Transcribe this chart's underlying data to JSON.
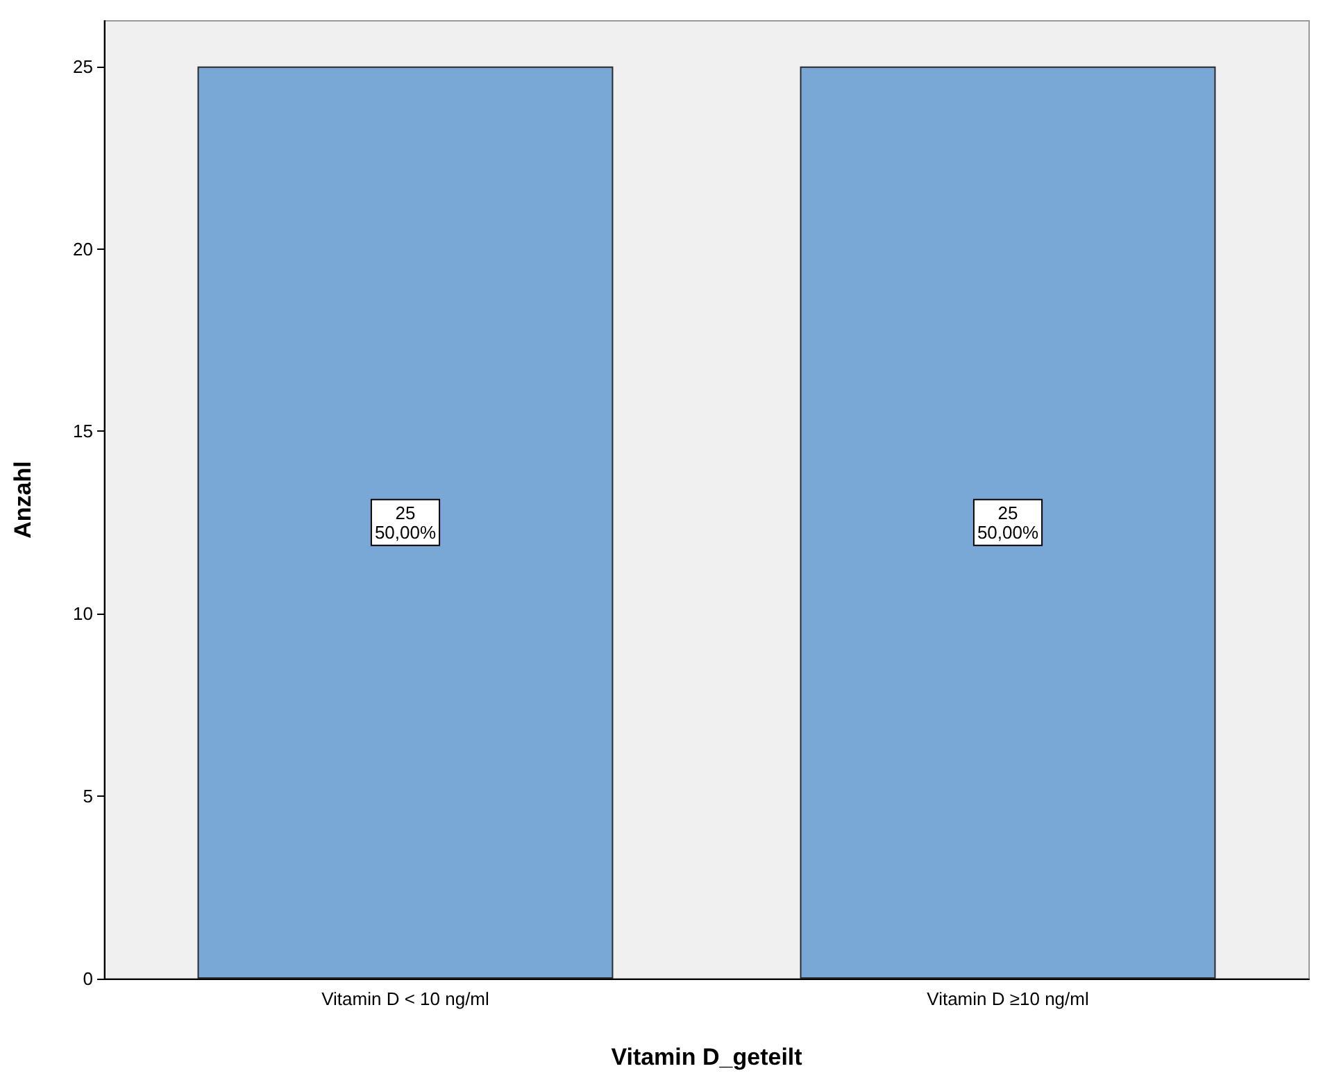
{
  "chart_data": {
    "type": "bar",
    "xlabel": "Vitamin D_geteilt",
    "ylabel": "Anzahl",
    "categories": [
      "Vitamin D < 10 ng/ml",
      "Vitamin D ≥10 ng/ml"
    ],
    "values": [
      25,
      25
    ],
    "color": "#79a8d6",
    "value_labels": [
      "25\n50,00%",
      "25\n50,00%"
    ],
    "ylim": [
      0,
      26.25
    ],
    "yticks": [
      0,
      5,
      10,
      15,
      20,
      25
    ],
    "grid": false
  }
}
